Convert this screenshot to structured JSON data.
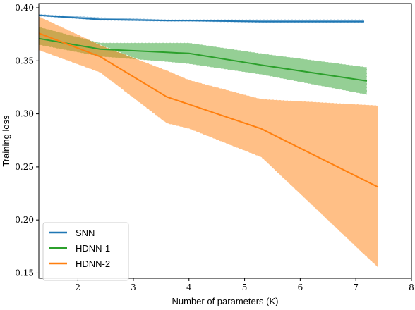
{
  "chart_data": {
    "type": "line",
    "title": "",
    "xlabel": "Number of parameters (K)",
    "ylabel": "Training loss",
    "xlim": [
      1.3,
      8.0
    ],
    "ylim": [
      0.145,
      0.404
    ],
    "xticks": [
      2,
      3,
      4,
      5,
      6,
      7,
      8
    ],
    "yticks": [
      0.15,
      0.2,
      0.25,
      0.3,
      0.35,
      0.4
    ],
    "ytick_labels": [
      "0.15",
      "0.20",
      "0.25",
      "0.30",
      "0.35",
      "0.40"
    ],
    "grid": false,
    "legend_position": "lower-left",
    "series": [
      {
        "name": "SNN",
        "color": "#1f77b4",
        "x": [
          1.3,
          2.4,
          3.6,
          4.0,
          5.3,
          7.15
        ],
        "y": [
          0.393,
          0.389,
          0.388,
          0.388,
          0.387,
          0.387
        ],
        "lower": [
          0.392,
          0.388,
          0.387,
          0.387,
          0.386,
          0.386
        ],
        "upper": [
          0.394,
          0.391,
          0.389,
          0.389,
          0.389,
          0.389
        ]
      },
      {
        "name": "HDNN-1",
        "color": "#2ca02c",
        "x": [
          1.3,
          2.4,
          3.6,
          4.0,
          5.3,
          7.2
        ],
        "y": [
          0.371,
          0.361,
          0.358,
          0.357,
          0.346,
          0.331
        ],
        "lower": [
          0.365,
          0.354,
          0.349,
          0.347,
          0.337,
          0.318
        ],
        "upper": [
          0.382,
          0.367,
          0.367,
          0.367,
          0.357,
          0.344
        ]
      },
      {
        "name": "HDNN-2",
        "color": "#ff7f0e",
        "x": [
          1.3,
          2.4,
          3.6,
          4.0,
          5.3,
          7.4
        ],
        "y": [
          0.376,
          0.354,
          0.316,
          0.309,
          0.286,
          0.231
        ],
        "lower": [
          0.36,
          0.339,
          0.291,
          0.286,
          0.259,
          0.155
        ],
        "upper": [
          0.392,
          0.365,
          0.341,
          0.332,
          0.314,
          0.308
        ]
      }
    ]
  }
}
